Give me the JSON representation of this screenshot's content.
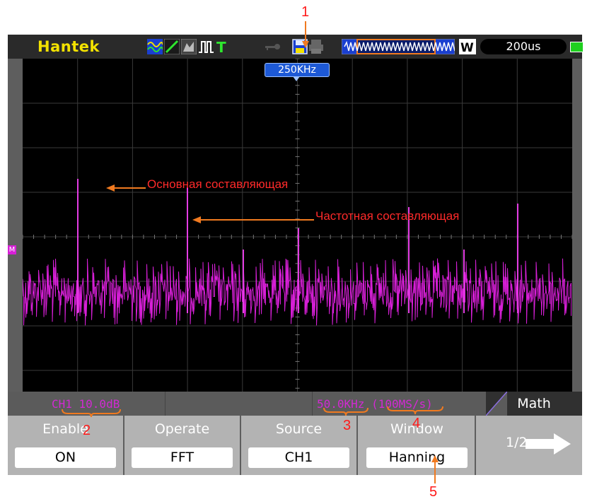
{
  "header": {
    "brand": "Hantek",
    "timebase": "200us",
    "battery": "full"
  },
  "toolbar_icons": [
    "waveform-icon",
    "trigger-slope-icon",
    "acquire-icon",
    "pulse-icon",
    "trigger-t-icon",
    "key-icon",
    "save-icon",
    "print-icon",
    "memory-waveform-icon",
    "w-icon"
  ],
  "grid": {
    "freq_marker": "250KHz",
    "channel_marker": "M"
  },
  "status": {
    "ch_scale": "CH1 10.0dB",
    "freq_scale": "50.0KHz (100MS/s)",
    "menu_name": "Math"
  },
  "menu": {
    "buttons": [
      {
        "title": "Enable",
        "value": "ON"
      },
      {
        "title": "Operate",
        "value": "FFT"
      },
      {
        "title": "Source",
        "value": "CH1"
      },
      {
        "title": "Window",
        "value": "Hanning"
      }
    ],
    "page": "1/2"
  },
  "annotations": {
    "fundamental": "Основная составляющая",
    "harmonic": "Частотная составляющая"
  },
  "callouts": {
    "c1": "1",
    "c2": "2",
    "c3": "3",
    "c4": "4",
    "c5": "5"
  },
  "colors": {
    "trace": "#d61fd6",
    "brand": "#f3e200",
    "annotation": "#ff2a2a",
    "arrow": "#f07a20",
    "marker": "#1d59d6"
  }
}
